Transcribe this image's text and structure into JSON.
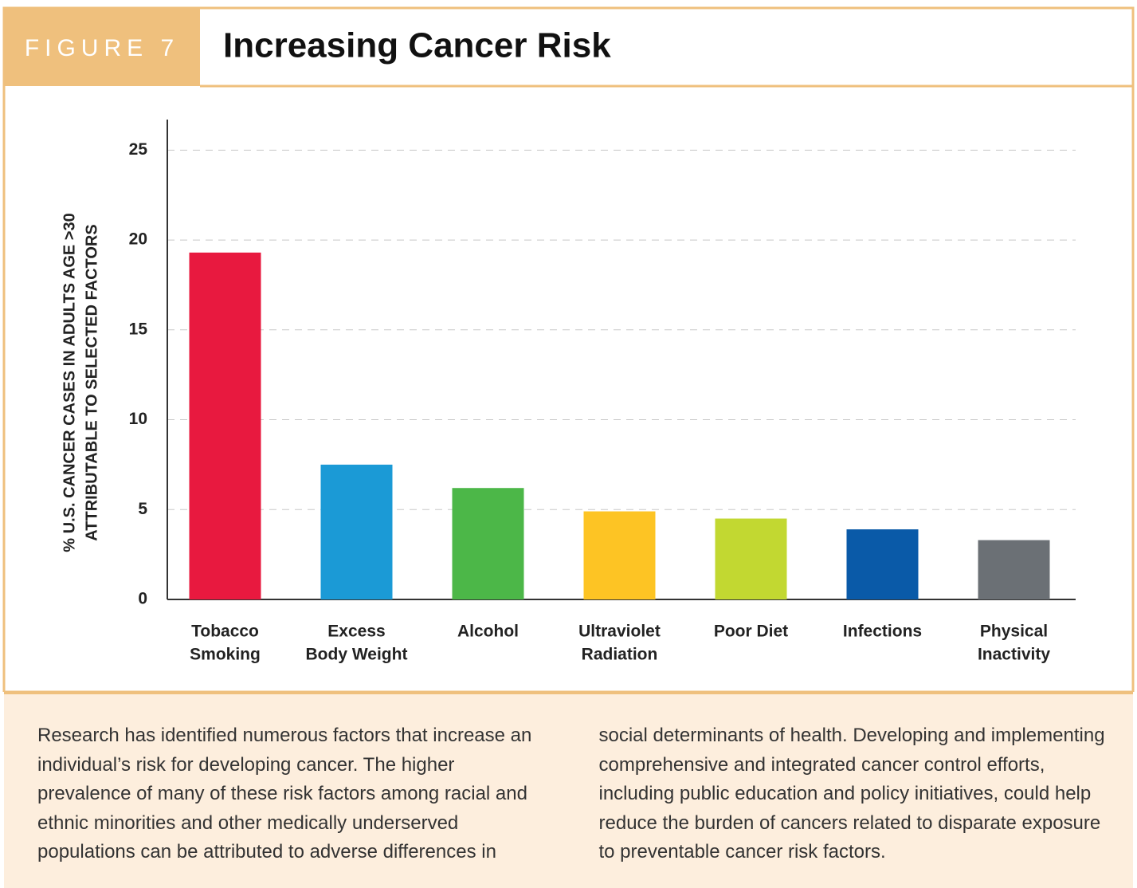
{
  "figure_label": "FIGURE 7",
  "chart_data": {
    "type": "bar",
    "title": "Increasing Cancer Risk",
    "ylabel": [
      "% U.S. CANCER CASES IN ADULTS AGE >30",
      "ATTRIBUTABLE TO SELECTED FACTORS"
    ],
    "categories": [
      [
        "Tobacco",
        "Smoking"
      ],
      [
        "Excess",
        "Body Weight"
      ],
      [
        "Alcohol"
      ],
      [
        "Ultraviolet",
        "Radiation"
      ],
      [
        "Poor Diet"
      ],
      [
        "Infections"
      ],
      [
        "Physical",
        "Inactivity"
      ]
    ],
    "values": [
      19.3,
      7.5,
      6.2,
      4.9,
      4.5,
      3.9,
      3.3
    ],
    "colors": [
      "#e8193f",
      "#1b9ad6",
      "#4cb748",
      "#fdc424",
      "#c2d831",
      "#0a5aa8",
      "#6b7075"
    ],
    "ylim": [
      0,
      26.7
    ],
    "yticks": [
      0,
      5,
      10,
      15,
      20,
      25
    ],
    "grid": true
  },
  "caption": "Research has identified numerous factors that increase an individual’s risk for developing cancer. The higher prevalence of many of these risk factors among racial and ethnic minorities and other medically underserved populations can be attributed to adverse differences in social determinants of health. Developing and implementing comprehensive and integrated cancer control efforts, including public education and policy initiatives, could help reduce the burden of cancers related to disparate exposure to preventable cancer risk factors."
}
